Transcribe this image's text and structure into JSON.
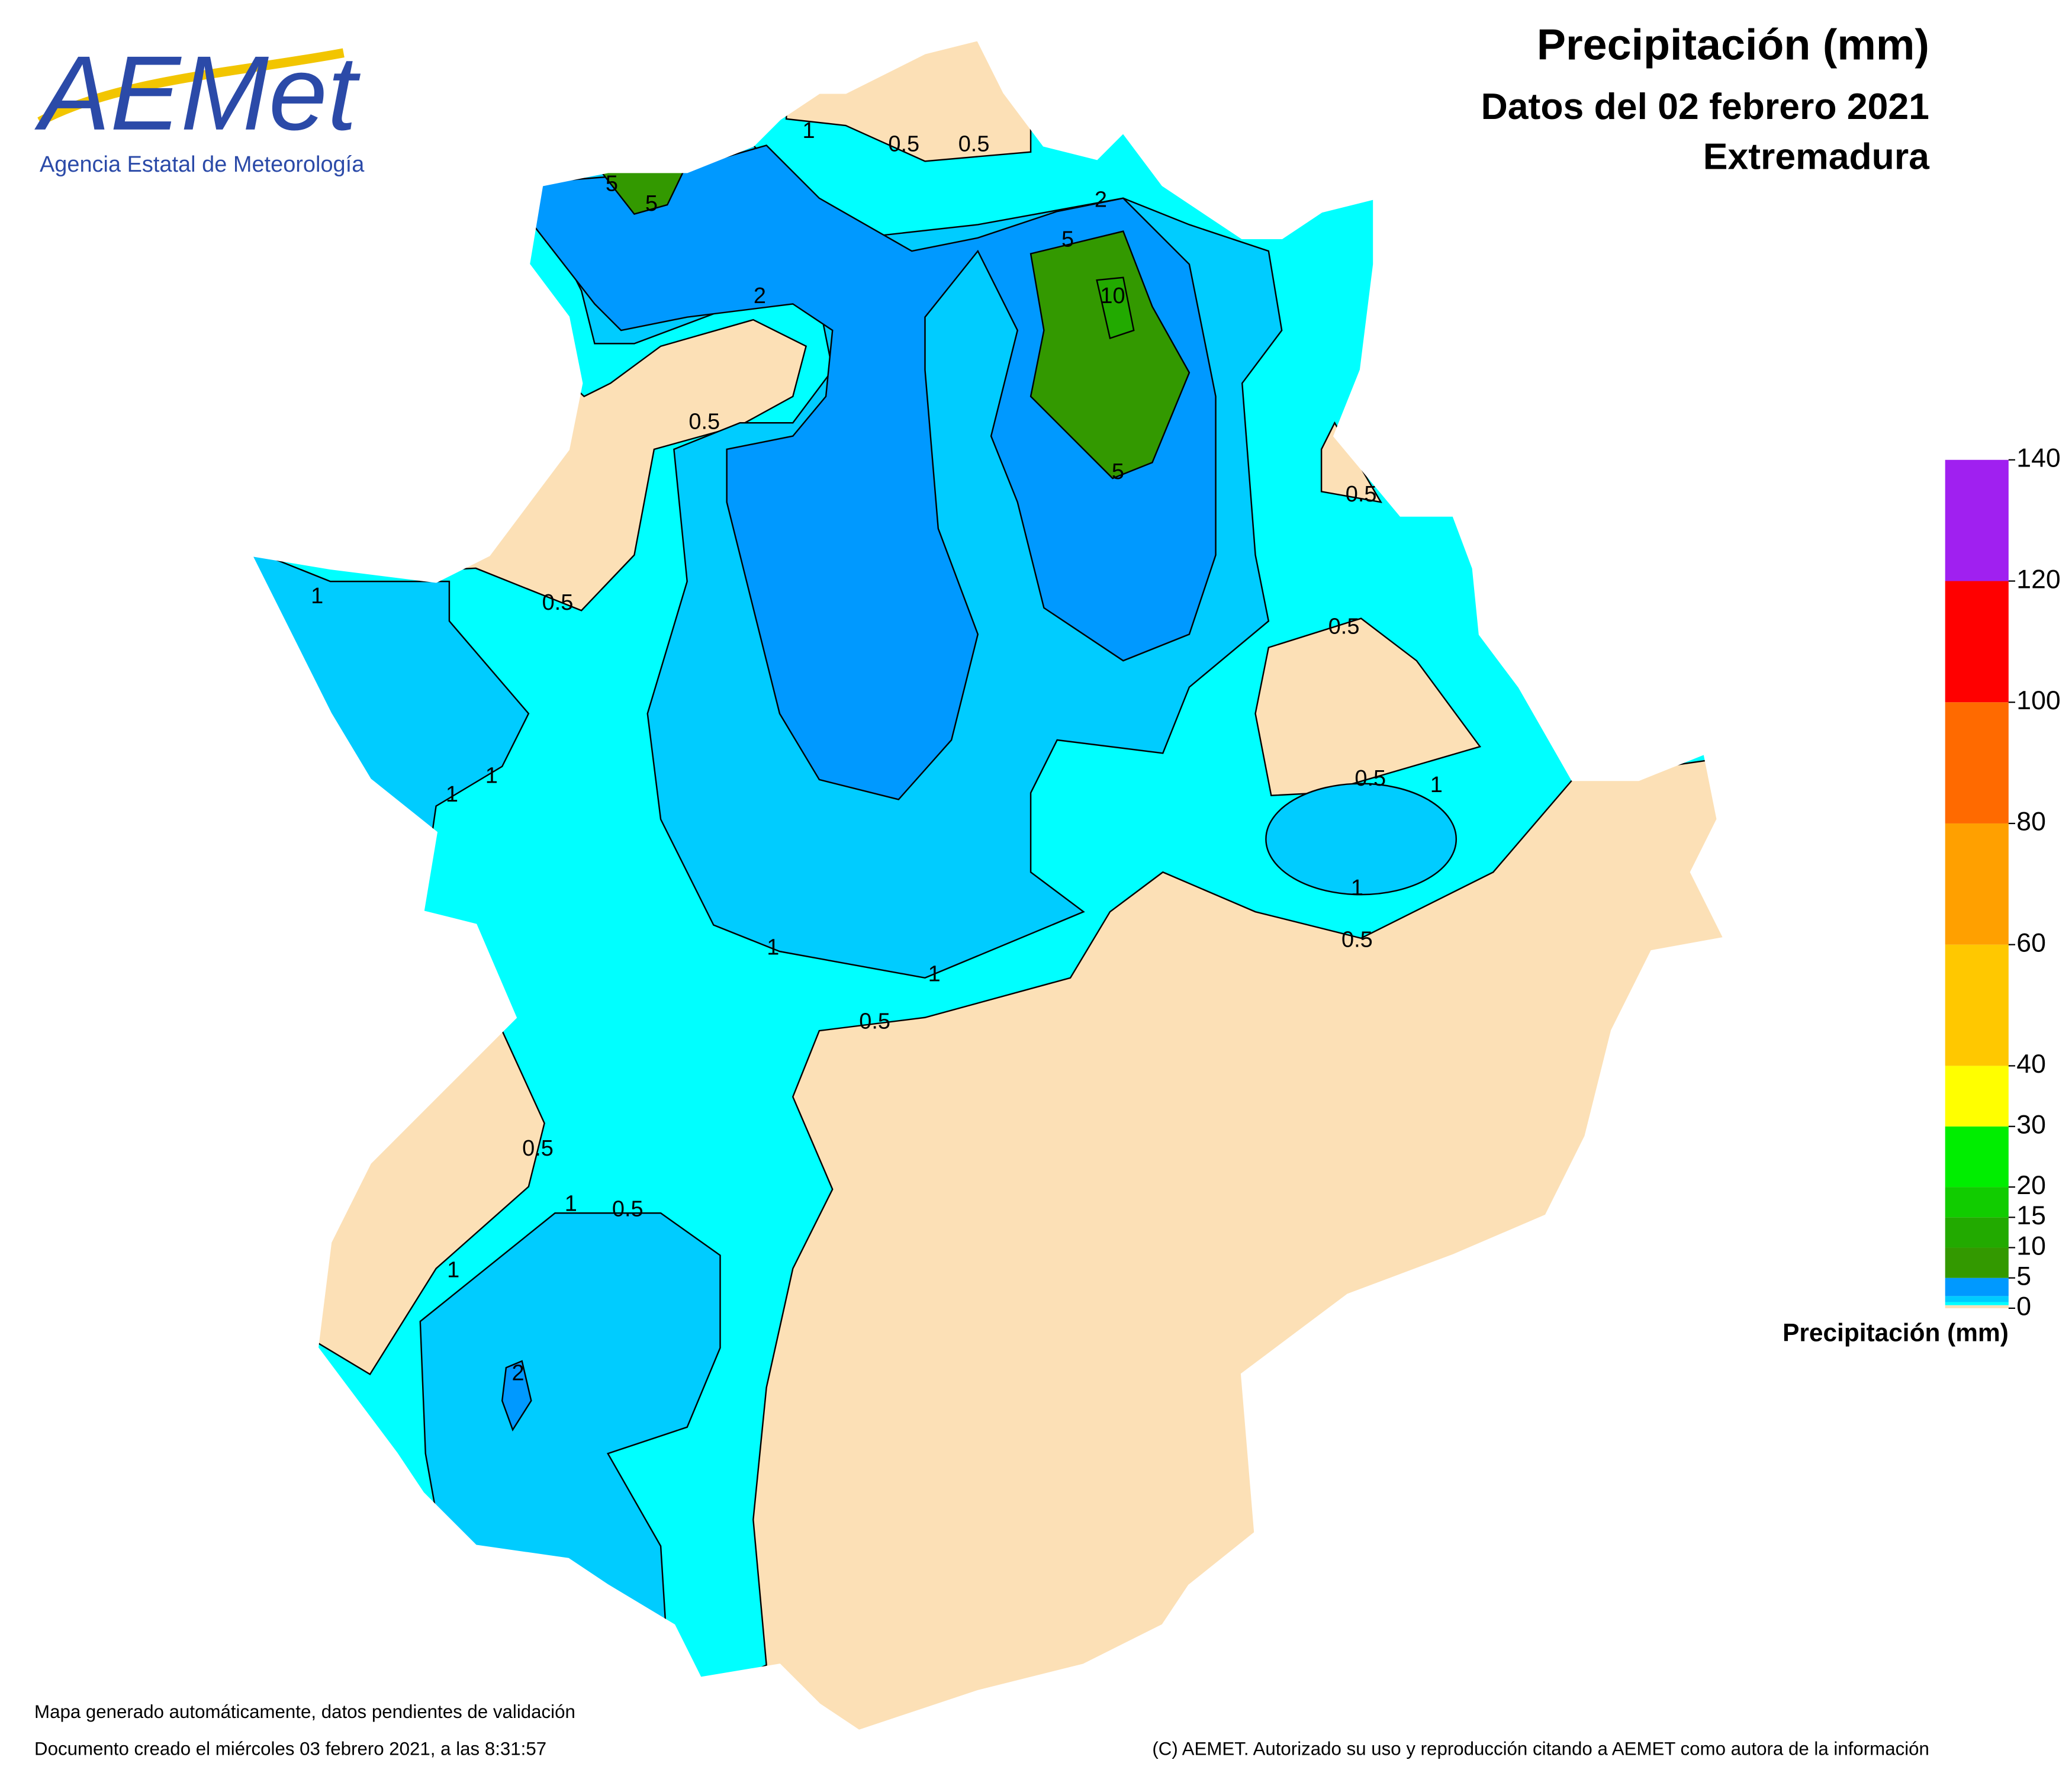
{
  "header": {
    "title": "Precipitación (mm)",
    "subtitle": "Datos del 02 febrero 2021",
    "region": "Extremadura"
  },
  "logo": {
    "name": "AEMet",
    "agency": "Agencia Estatal de Meteorología"
  },
  "legend": {
    "label": "Precipitación (mm)",
    "bins": [
      0,
      0.5,
      1,
      2,
      5,
      10,
      15,
      20,
      30,
      40,
      60,
      80,
      100,
      120,
      140
    ],
    "colors": [
      "#fce0b6",
      "#00ffff",
      "#00ccff",
      "#0099ff",
      "#339900",
      "#22aa00",
      "#11cc00",
      "#00ee00",
      "#ffff00",
      "#ffc800",
      "#ffa000",
      "#ff6a00",
      "#ff0000",
      "#a020f0"
    ],
    "ticks": [
      0,
      5,
      10,
      15,
      20,
      30,
      40,
      60,
      80,
      100,
      120,
      140
    ]
  },
  "contour_labels": [
    1,
    0.5,
    0.5,
    5,
    5,
    2,
    5,
    10,
    2,
    0.5,
    0.5,
    0.5,
    1,
    1,
    1,
    5,
    0.5,
    0.5,
    1,
    1,
    0.5,
    1,
    1,
    0.5,
    0.5,
    1,
    1,
    0.5,
    2
  ],
  "footer": {
    "note": "Mapa generado automáticamente, datos pendientes de validación",
    "created": "Documento creado el miércoles 03 febrero 2021, a las 8:31:57",
    "copyright": "(C) AEMET. Autorizado su uso y reproducción citando a AEMET como autora de la información"
  }
}
